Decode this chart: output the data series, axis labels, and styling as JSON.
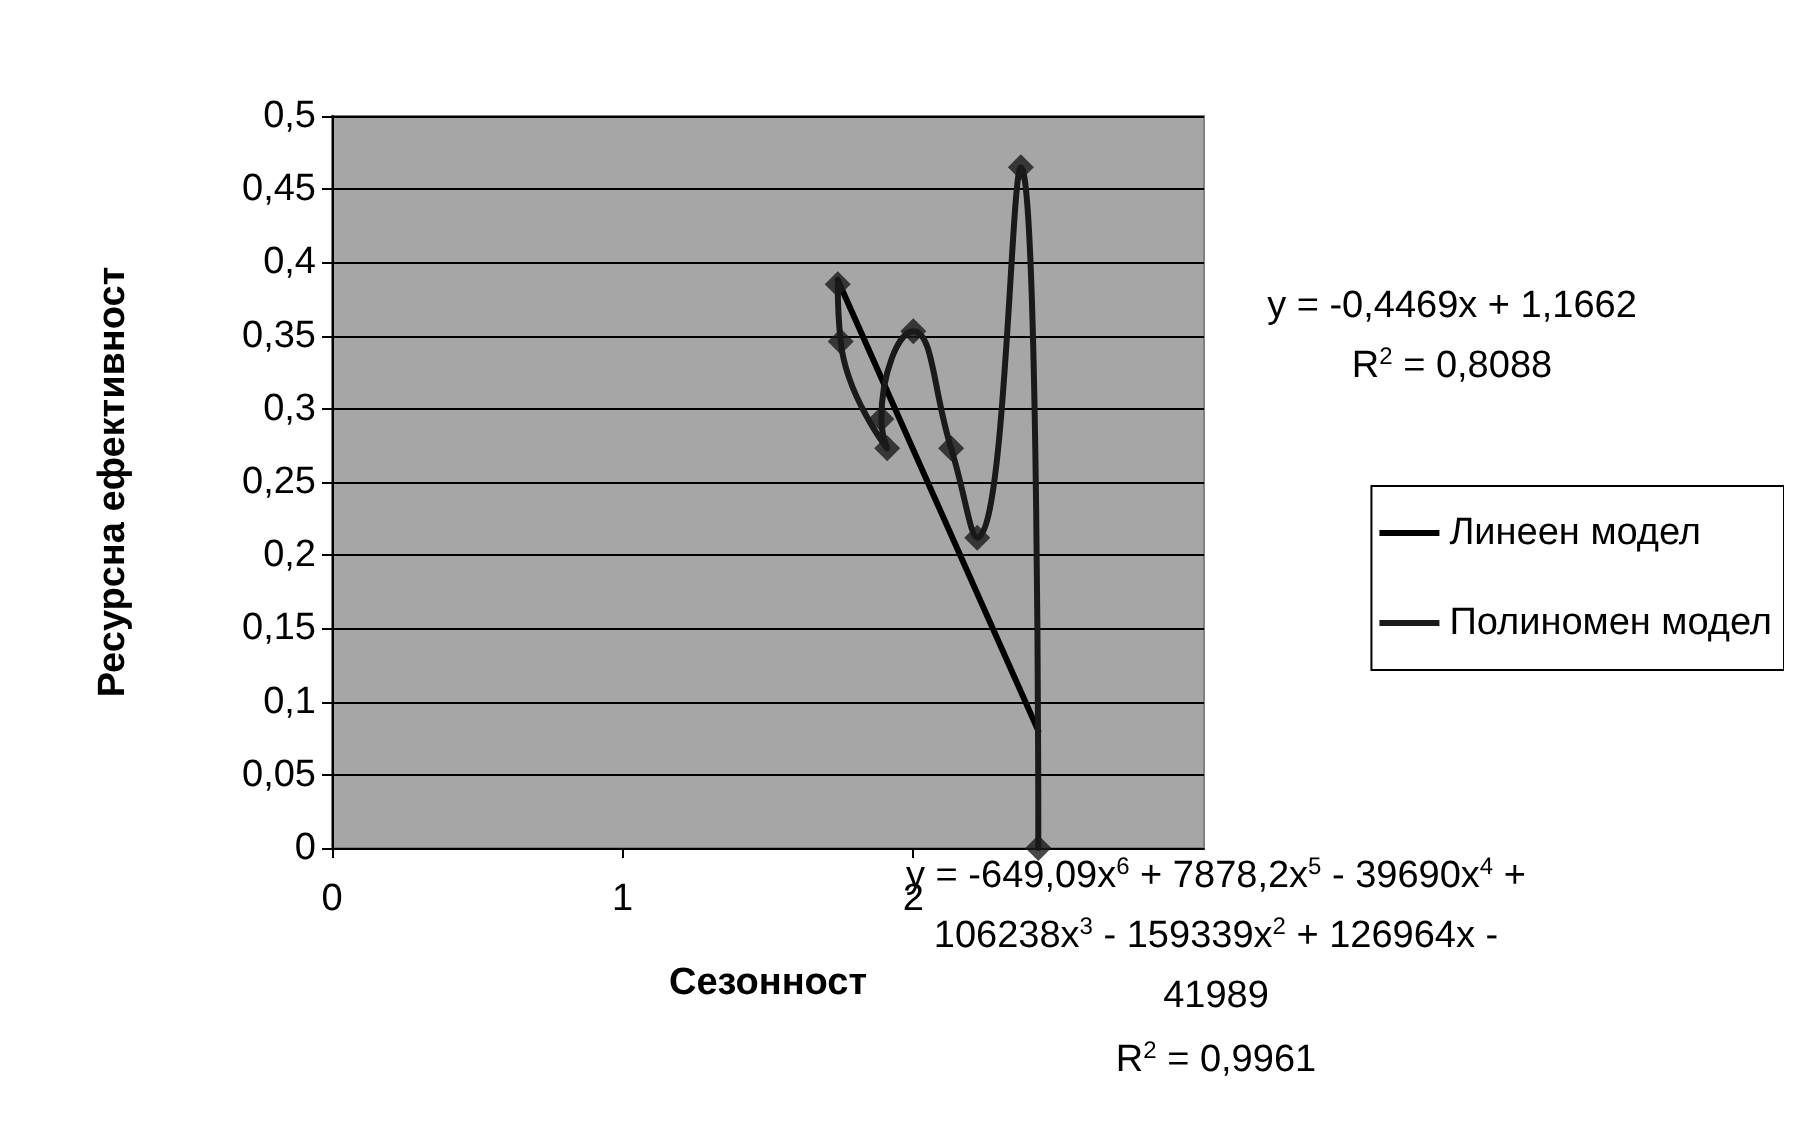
{
  "chart_data": {
    "type": "line",
    "xlabel": "Сезонност",
    "ylabel": "Ресурсна ефективност",
    "xlim": [
      0,
      3
    ],
    "xticks": [
      0,
      1,
      2
    ],
    "ylim": [
      0,
      0.5
    ],
    "yticks": [
      {
        "value": 0,
        "label": "0"
      },
      {
        "value": 0.05,
        "label": "0,05"
      },
      {
        "value": 0.1,
        "label": "0,1"
      },
      {
        "value": 0.15,
        "label": "0,15"
      },
      {
        "value": 0.2,
        "label": "0,2"
      },
      {
        "value": 0.25,
        "label": "0,25"
      },
      {
        "value": 0.3,
        "label": "0,3"
      },
      {
        "value": 0.35,
        "label": "0,35"
      },
      {
        "value": 0.4,
        "label": "0,4"
      },
      {
        "value": 0.45,
        "label": "0,45"
      },
      {
        "value": 0.5,
        "label": "0,5"
      }
    ],
    "grid": "y",
    "legend": "right",
    "series": [
      {
        "type": "scatter",
        "marker": "diamond",
        "color": "#1a1a1a",
        "x": [
          1.74,
          1.75,
          1.91,
          1.89,
          2.0,
          2.13,
          2.22,
          2.37,
          2.43
        ],
        "values": [
          0.385,
          0.346,
          0.273,
          0.293,
          0.353,
          0.273,
          0.212,
          0.465,
          0
        ]
      },
      {
        "name": "Линеен модел",
        "color": "#000000",
        "x": [
          1.74,
          2.43
        ],
        "values": [
          0.388,
          0.08
        ]
      },
      {
        "name": "Полиномен модел",
        "color": "#1a1a1a",
        "x": [
          1.74,
          1.75,
          1.91,
          1.89,
          2.0,
          2.13,
          2.22,
          2.37,
          2.43
        ],
        "values": [
          0.385,
          0.346,
          0.273,
          0.293,
          0.353,
          0.273,
          0.212,
          0.465,
          0
        ]
      }
    ],
    "annotations": [
      "y = -0,4469x + 1,1662",
      "R$^{2}$ = 0,8088",
      "y = -649,09x$^{6}$ + 7878,2x$^{5}$ - 39690x$^{4}$ +",
      "106238x$^{3}$ - 159339x$^{2}$ + 126964x -",
      "41989",
      "R$^{2}$ = 0,9961"
    ]
  }
}
